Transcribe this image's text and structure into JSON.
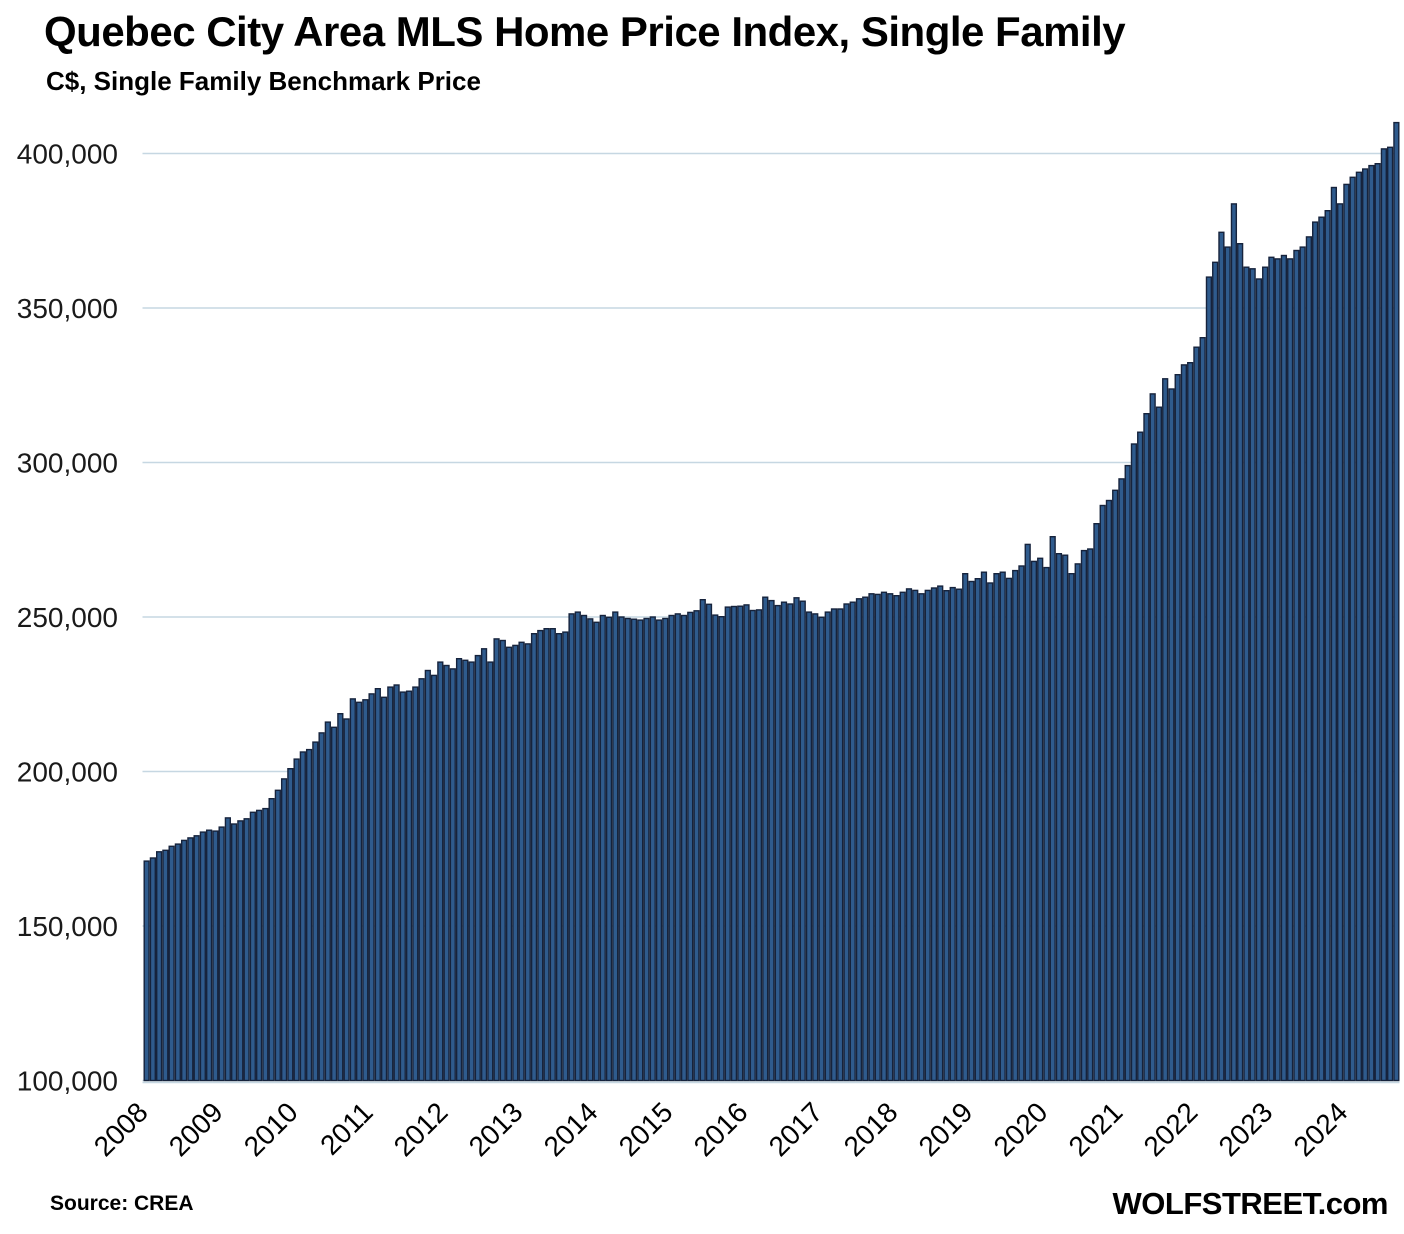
{
  "header": {
    "title": "Quebec City Area MLS Home Price Index, Single Family",
    "subtitle": "C$, Single Family Benchmark Price"
  },
  "footer": {
    "source": "Source: CREA",
    "branding": "WOLFSTREET.com"
  },
  "colors": {
    "bar_fill": "#2F5B8D",
    "bar_border": "#16233C",
    "gridline": "#C6D7E2",
    "label_text": "#1A1A1A"
  },
  "chart_data": {
    "type": "bar",
    "title": "Quebec City Area MLS Home Price Index, Single Family",
    "subtitle": "C$, Single Family Benchmark Price",
    "unit": "C$",
    "x_start": "2008-01",
    "x_end": "2024-09",
    "frequency": "monthly",
    "grid": "horizontal",
    "legend": "none",
    "ylim": [
      100000,
      412000
    ],
    "yticks": [
      100000,
      150000,
      200000,
      250000,
      300000,
      350000,
      400000
    ],
    "year_ticks": [
      2008,
      2009,
      2010,
      2011,
      2012,
      2013,
      2014,
      2015,
      2016,
      2017,
      2018,
      2019,
      2020,
      2021,
      2022,
      2023,
      2024
    ],
    "monthly_values": [
      171000,
      172000,
      174000,
      174500,
      175800,
      176500,
      177700,
      178500,
      179200,
      180400,
      181000,
      180700,
      182000,
      185000,
      183000,
      184000,
      184700,
      186800,
      187400,
      188000,
      191200,
      193900,
      197600,
      200900,
      204000,
      206300,
      207100,
      209500,
      212500,
      216000,
      214300,
      218700,
      217000,
      223500,
      222400,
      223200,
      225100,
      226800,
      224000,
      227300,
      228000,
      225700,
      226000,
      227300,
      230000,
      232700,
      231100,
      235400,
      234300,
      233200,
      236500,
      236000,
      235400,
      237500,
      239700,
      235400,
      242900,
      242400,
      240200,
      240800,
      241800,
      241300,
      244600,
      245600,
      246200,
      246200,
      244600,
      245100,
      251000,
      251600,
      250500,
      249400,
      248300,
      250500,
      249900,
      251600,
      250000,
      249500,
      249300,
      249000,
      249500,
      250000,
      249000,
      249500,
      250500,
      251000,
      250500,
      251500,
      252000,
      255600,
      254100,
      250600,
      250100,
      253200,
      253400,
      253500,
      253900,
      252100,
      252300,
      256400,
      255300,
      253700,
      254800,
      254200,
      256200,
      255100,
      251600,
      251000,
      249900,
      251600,
      252600,
      252600,
      254200,
      254800,
      255900,
      256400,
      257500,
      257300,
      258000,
      257500,
      256900,
      258000,
      259100,
      258600,
      257500,
      258600,
      259400,
      260000,
      258500,
      259500,
      259000,
      264000,
      261500,
      262400,
      264500,
      261000,
      264000,
      264500,
      262500,
      265000,
      266500,
      273500,
      268000,
      269000,
      266000,
      276000,
      270500,
      270000,
      264000,
      267200,
      271500,
      272000,
      280200,
      286100,
      287700,
      291000,
      294700,
      299000,
      306000,
      309800,
      315800,
      322200,
      317900,
      327100,
      323800,
      328400,
      331600,
      332300,
      337300,
      340400,
      360000,
      364800,
      374500,
      369700,
      383700,
      370800,
      363200,
      362700,
      359400,
      363200,
      366400,
      365900,
      367000,
      365900,
      368600,
      369700,
      373000,
      377800,
      379400,
      381500,
      389000,
      383700,
      390000,
      392300,
      393900,
      395000,
      396100,
      396700,
      401500,
      402000,
      410000
    ]
  }
}
